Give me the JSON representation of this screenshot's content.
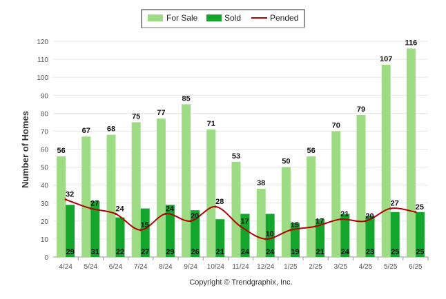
{
  "chart_data": {
    "type": "bar",
    "categories": [
      "4/24",
      "5/24",
      "6/24",
      "7/24",
      "8/24",
      "9/24",
      "10/24",
      "11/24",
      "12/24",
      "1/25",
      "2/25",
      "3/25",
      "4/25",
      "5/25",
      "6/25"
    ],
    "series": [
      {
        "name": "For Sale",
        "type": "bar",
        "color": "#9ddc84",
        "values": [
          56,
          67,
          68,
          75,
          77,
          85,
          71,
          53,
          38,
          50,
          56,
          70,
          79,
          107,
          116
        ]
      },
      {
        "name": "Sold",
        "type": "bar",
        "color": "#14a52c",
        "values": [
          29,
          31,
          22,
          27,
          29,
          26,
          21,
          24,
          24,
          19,
          21,
          24,
          23,
          25,
          25
        ]
      },
      {
        "name": "Pended",
        "type": "line",
        "color": "#b30000",
        "values": [
          32,
          27,
          24,
          15,
          24,
          20,
          28,
          17,
          10,
          15,
          17,
          21,
          20,
          27,
          25
        ]
      }
    ],
    "ylabel": "Number of Homes",
    "xlabel": "",
    "ylim": [
      0,
      120
    ],
    "yticks": [
      0,
      10,
      20,
      30,
      40,
      50,
      60,
      70,
      80,
      90,
      100,
      110,
      120
    ],
    "grid": true,
    "legend": "top-center",
    "footer": "Copyright © Trendgraphix, Inc."
  }
}
